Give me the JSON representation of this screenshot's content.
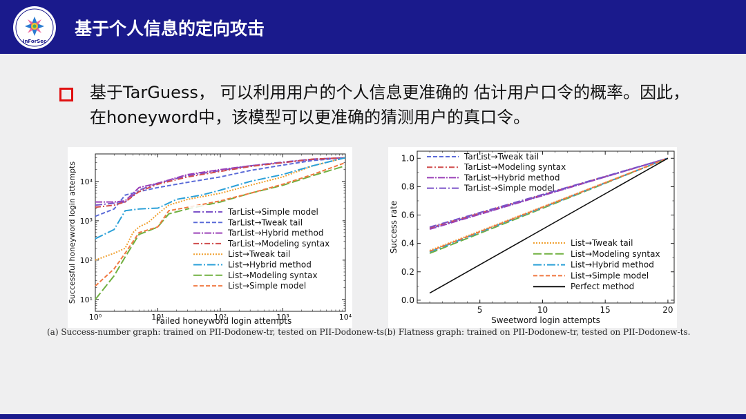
{
  "header": {
    "title": "基于个人信息的定向攻击",
    "logo_text": "InForSec"
  },
  "bullet": {
    "line1": "基于TarGuess， 可以利用用户的个人信息更准确的 估计用户口令的概率。因此，",
    "line2": "在honeyword中，该模型可以更准确的猜测用户的真口令。"
  },
  "colors": {
    "header_bg": "#1a1a8c",
    "bullet": "#e01010"
  },
  "chart_data": [
    {
      "type": "line",
      "caption": "(a)  Success-number graph: trained on PII-Dodonew-tr, tested on PII-Dodonew-ts.",
      "xlabel": "Failed honeyword login attempts",
      "ylabel": "Successful honeyword login attempts",
      "xscale": "log",
      "yscale": "log",
      "xlim": [
        1,
        10000
      ],
      "ylim": [
        5,
        50000
      ],
      "xticks": [
        1,
        10,
        100,
        1000,
        10000
      ],
      "xtick_labels": [
        "10⁰",
        "10¹",
        "10²",
        "10³",
        "10⁴"
      ],
      "yticks": [
        10,
        100,
        1000,
        10000
      ],
      "ytick_labels": [
        "10¹",
        "10²",
        "10³",
        "10⁴"
      ],
      "legend_position": "lower-right",
      "series": [
        {
          "name": "TarList→Simple model",
          "color": "#7b52c8",
          "dash": "10,3,2,3",
          "x": [
            1,
            2,
            3,
            5,
            10,
            30,
            100,
            300,
            1000,
            3000,
            10000
          ],
          "y": [
            2500,
            2800,
            3000,
            6000,
            9000,
            14000,
            19000,
            25000,
            31000,
            37000,
            40000
          ]
        },
        {
          "name": "TarList→Tweak tail",
          "color": "#5a6ad8",
          "dash": "6,3",
          "x": [
            1,
            2,
            3,
            5,
            10,
            30,
            100,
            300,
            1000,
            3000,
            10000
          ],
          "y": [
            1300,
            2000,
            4500,
            5500,
            7000,
            9500,
            13000,
            19000,
            26000,
            34000,
            40000
          ]
        },
        {
          "name": "TarList→Hybrid method",
          "color": "#9a40b8",
          "dash": "10,2,2,2",
          "x": [
            1,
            2,
            3,
            5,
            10,
            30,
            100,
            300,
            1000,
            3000,
            10000
          ],
          "y": [
            3000,
            3000,
            3200,
            7000,
            9000,
            15000,
            20000,
            25000,
            30000,
            36000,
            40000
          ]
        },
        {
          "name": "TarList→Modeling syntax",
          "color": "#d04c4c",
          "dash": "8,3,2,3",
          "x": [
            1,
            2,
            3,
            5,
            10,
            30,
            100,
            300,
            1000,
            3000,
            10000
          ],
          "y": [
            2200,
            2500,
            3000,
            5500,
            8500,
            13000,
            18000,
            24000,
            30000,
            37000,
            40000
          ]
        },
        {
          "name": "List→Tweak tail",
          "color": "#f0a030",
          "dash": "2,2",
          "x": [
            1,
            2,
            3,
            4,
            5,
            7,
            10,
            15,
            30,
            100,
            300,
            1000,
            3000,
            10000
          ],
          "y": [
            100,
            150,
            200,
            500,
            700,
            900,
            1500,
            2500,
            3500,
            5000,
            8000,
            13000,
            25000,
            40000
          ]
        },
        {
          "name": "List→Hybrid method",
          "color": "#2aa0d8",
          "dash": "12,3,2,3",
          "x": [
            1,
            2,
            3,
            5,
            10,
            20,
            50,
            100,
            300,
            1000,
            3000,
            10000
          ],
          "y": [
            350,
            600,
            1800,
            2000,
            2100,
            3500,
            4500,
            6000,
            10000,
            15000,
            25000,
            40000
          ]
        },
        {
          "name": "List→Modeling syntax",
          "color": "#70b040",
          "dash": "12,4",
          "x": [
            1,
            2,
            3,
            5,
            8,
            10,
            15,
            30,
            100,
            300,
            1000,
            3000,
            10000
          ],
          "y": [
            10,
            40,
            120,
            450,
            600,
            700,
            1500,
            2000,
            3000,
            5000,
            8000,
            14000,
            25000
          ]
        },
        {
          "name": "List→Simple model",
          "color": "#f07840",
          "dash": "6,3",
          "x": [
            1,
            2,
            3,
            5,
            10,
            15,
            30,
            100,
            300,
            1000,
            3000,
            10000
          ],
          "y": [
            22,
            60,
            150,
            500,
            700,
            1800,
            2200,
            3200,
            5000,
            8500,
            15000,
            30000
          ]
        }
      ]
    },
    {
      "type": "line",
      "caption": "(b)  Flatness graph: trained on PII-Dodonew-tr, tested on PII-Dodonew-ts.",
      "xlabel": "Sweetword login attempts",
      "ylabel": "Success rate",
      "xlim": [
        0,
        20.5
      ],
      "ylim": [
        -0.02,
        1.05
      ],
      "xticks": [
        5,
        10,
        15,
        20
      ],
      "yticks": [
        0.0,
        0.2,
        0.4,
        0.6,
        0.8,
        1.0
      ],
      "ytick_labels": [
        "0.0",
        "0.2",
        "0.4",
        "0.6",
        "0.8",
        "1.0"
      ],
      "legend_position": "upper-left and lower-right",
      "series": [
        {
          "name": "TarList→Tweak tail",
          "color": "#5a6ad8",
          "dash": "6,3",
          "group": "upper",
          "x": [
            1,
            20
          ],
          "y": [
            0.505,
            1.0
          ]
        },
        {
          "name": "TarList→Modeling syntax",
          "color": "#d04c4c",
          "dash": "8,3,2,3",
          "group": "upper",
          "x": [
            1,
            20
          ],
          "y": [
            0.51,
            1.0
          ]
        },
        {
          "name": "TarList→Hybrid method",
          "color": "#9a40b8",
          "dash": "10,2,2,2",
          "group": "upper",
          "x": [
            1,
            20
          ],
          "y": [
            0.5,
            1.0
          ]
        },
        {
          "name": "TarList→Simple model",
          "color": "#7b52c8",
          "dash": "10,3,2,3",
          "group": "upper",
          "x": [
            1,
            20
          ],
          "y": [
            0.515,
            1.0
          ]
        },
        {
          "name": "List→Tweak tail",
          "color": "#f0a030",
          "dash": "2,2",
          "group": "lower",
          "x": [
            1,
            20
          ],
          "y": [
            0.35,
            1.0
          ]
        },
        {
          "name": "List→Modeling syntax",
          "color": "#70b040",
          "dash": "12,4",
          "group": "lower",
          "x": [
            1,
            20
          ],
          "y": [
            0.33,
            1.0
          ]
        },
        {
          "name": "List→Hybrid method",
          "color": "#2aa0d8",
          "dash": "12,3,2,3",
          "group": "lower",
          "x": [
            1,
            20
          ],
          "y": [
            0.34,
            1.0
          ]
        },
        {
          "name": "List→Simple model",
          "color": "#f07840",
          "dash": "6,3",
          "group": "lower",
          "x": [
            1,
            20
          ],
          "y": [
            0.345,
            1.0
          ]
        },
        {
          "name": "Perfect method",
          "color": "#111111",
          "dash": "",
          "group": "lower",
          "x": [
            1,
            20
          ],
          "y": [
            0.05,
            1.0
          ]
        }
      ]
    }
  ]
}
